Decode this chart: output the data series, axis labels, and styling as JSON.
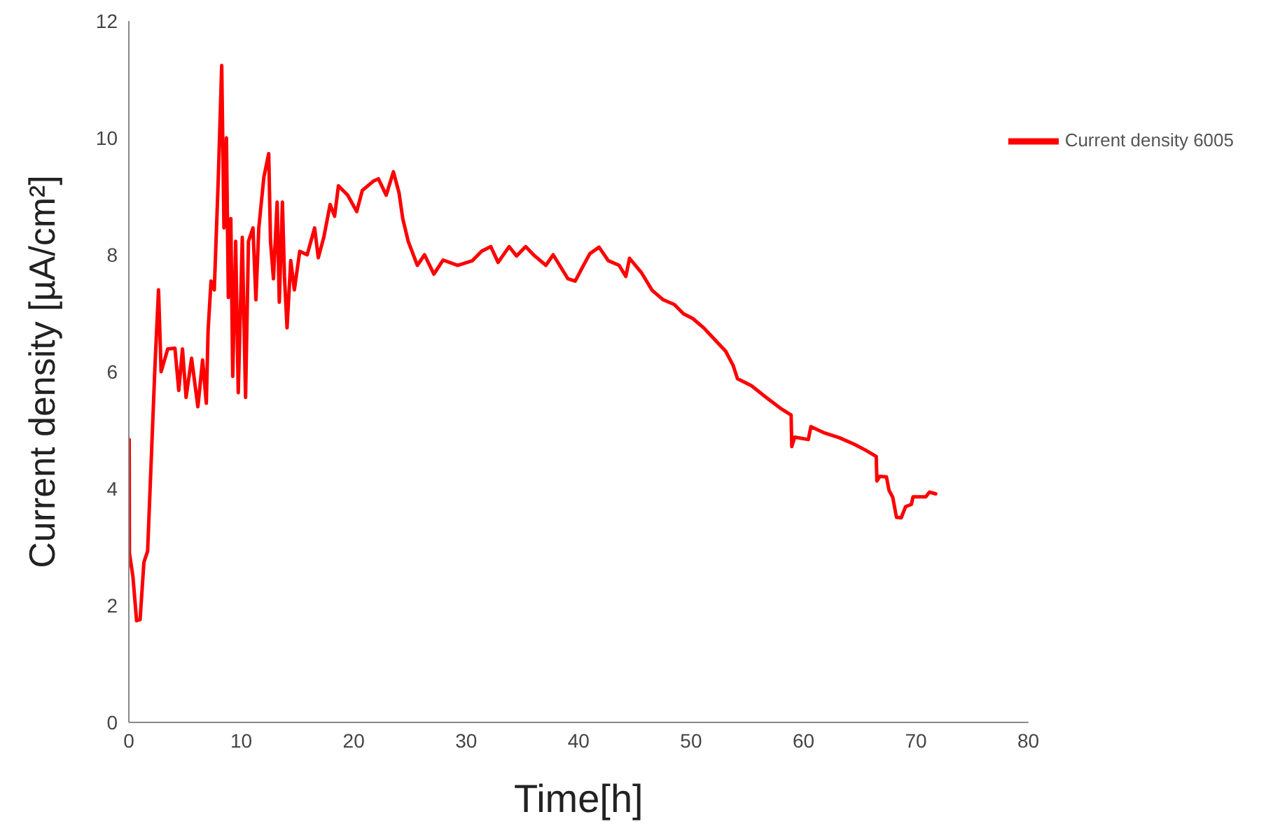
{
  "chart_data": {
    "type": "line",
    "xlabel": "Time[h]",
    "ylabel": "Current density [µA/cm²]",
    "xlim": [
      0,
      80
    ],
    "xticks": [
      0,
      10,
      20,
      30,
      40,
      50,
      60,
      70,
      80
    ],
    "ylim": [
      0,
      12
    ],
    "yticks": [
      0,
      2,
      4,
      6,
      8,
      10,
      12
    ],
    "grid": false,
    "legend": "top right",
    "marker": "none",
    "line_style": "solid",
    "series": [
      {
        "name": "Current density 6005",
        "color": "#ff0000",
        "x": [
          0,
          0.03,
          0.05,
          0.36,
          0.69,
          1.0,
          1.34,
          1.67,
          1.99,
          2.32,
          2.64,
          2.87,
          3.46,
          4.1,
          4.44,
          4.77,
          5.09,
          5.58,
          6.14,
          6.56,
          6.89,
          7.05,
          7.31,
          7.6,
          7.96,
          8.26,
          8.46,
          8.68,
          8.85,
          9.07,
          9.24,
          9.5,
          9.73,
          10.09,
          10.38,
          10.64,
          11.04,
          11.3,
          11.56,
          12.01,
          12.44,
          12.6,
          12.86,
          13.19,
          13.38,
          13.66,
          13.84,
          14.07,
          14.4,
          14.72,
          15.2,
          15.86,
          16.52,
          16.85,
          17.34,
          17.9,
          18.3,
          18.64,
          19.46,
          20.27,
          20.76,
          21.74,
          22.2,
          22.89,
          23.53,
          24.03,
          24.36,
          24.85,
          25.34,
          25.66,
          26.3,
          27.13,
          27.94,
          29.25,
          30.56,
          31.37,
          32.19,
          32.84,
          33.82,
          34.48,
          35.29,
          36.1,
          37.09,
          37.74,
          39.05,
          39.7,
          40.35,
          41.0,
          41.82,
          42.64,
          43.6,
          44.2,
          44.53,
          45.57,
          46.55,
          47.53,
          48.51,
          49.33,
          50.15,
          51.13,
          52.1,
          53.08,
          53.74,
          54.13,
          55.37,
          56.68,
          57.98,
          58.9,
          58.96,
          59.22,
          60.43,
          60.66,
          61.9,
          63.2,
          64.5,
          65.5,
          66.47,
          66.53,
          66.8,
          67.38,
          67.61,
          67.94,
          68.27,
          68.69,
          69.08,
          69.6,
          69.74,
          70.88,
          71.2,
          71.76
        ],
        "values": [
          2.9,
          4.84,
          2.9,
          2.5,
          1.74,
          1.76,
          2.74,
          2.93,
          4.48,
          6.08,
          7.4,
          6.0,
          6.39,
          6.4,
          5.68,
          6.39,
          5.56,
          6.23,
          5.4,
          6.2,
          5.46,
          6.71,
          7.55,
          7.4,
          9.33,
          11.24,
          8.46,
          10.0,
          7.27,
          8.62,
          5.92,
          8.23,
          5.64,
          8.3,
          5.56,
          8.23,
          8.46,
          7.23,
          8.46,
          9.33,
          9.73,
          8.23,
          7.59,
          8.9,
          7.19,
          8.9,
          7.63,
          6.75,
          7.9,
          7.4,
          8.06,
          8.0,
          8.46,
          7.95,
          8.3,
          8.86,
          8.66,
          9.18,
          9.02,
          8.74,
          9.1,
          9.26,
          9.3,
          9.02,
          9.42,
          9.06,
          8.62,
          8.23,
          7.98,
          7.82,
          8.0,
          7.67,
          7.91,
          7.82,
          7.9,
          8.06,
          8.14,
          7.87,
          8.14,
          7.98,
          8.14,
          7.98,
          7.82,
          8.0,
          7.59,
          7.55,
          7.79,
          8.02,
          8.13,
          7.9,
          7.82,
          7.63,
          7.94,
          7.7,
          7.39,
          7.23,
          7.15,
          6.99,
          6.91,
          6.75,
          6.55,
          6.35,
          6.11,
          5.88,
          5.76,
          5.56,
          5.37,
          5.26,
          4.72,
          4.88,
          4.84,
          5.06,
          4.95,
          4.87,
          4.76,
          4.66,
          4.55,
          4.13,
          4.21,
          4.2,
          3.97,
          3.85,
          3.51,
          3.5,
          3.69,
          3.73,
          3.86,
          3.86,
          3.94,
          3.91
        ]
      }
    ]
  }
}
